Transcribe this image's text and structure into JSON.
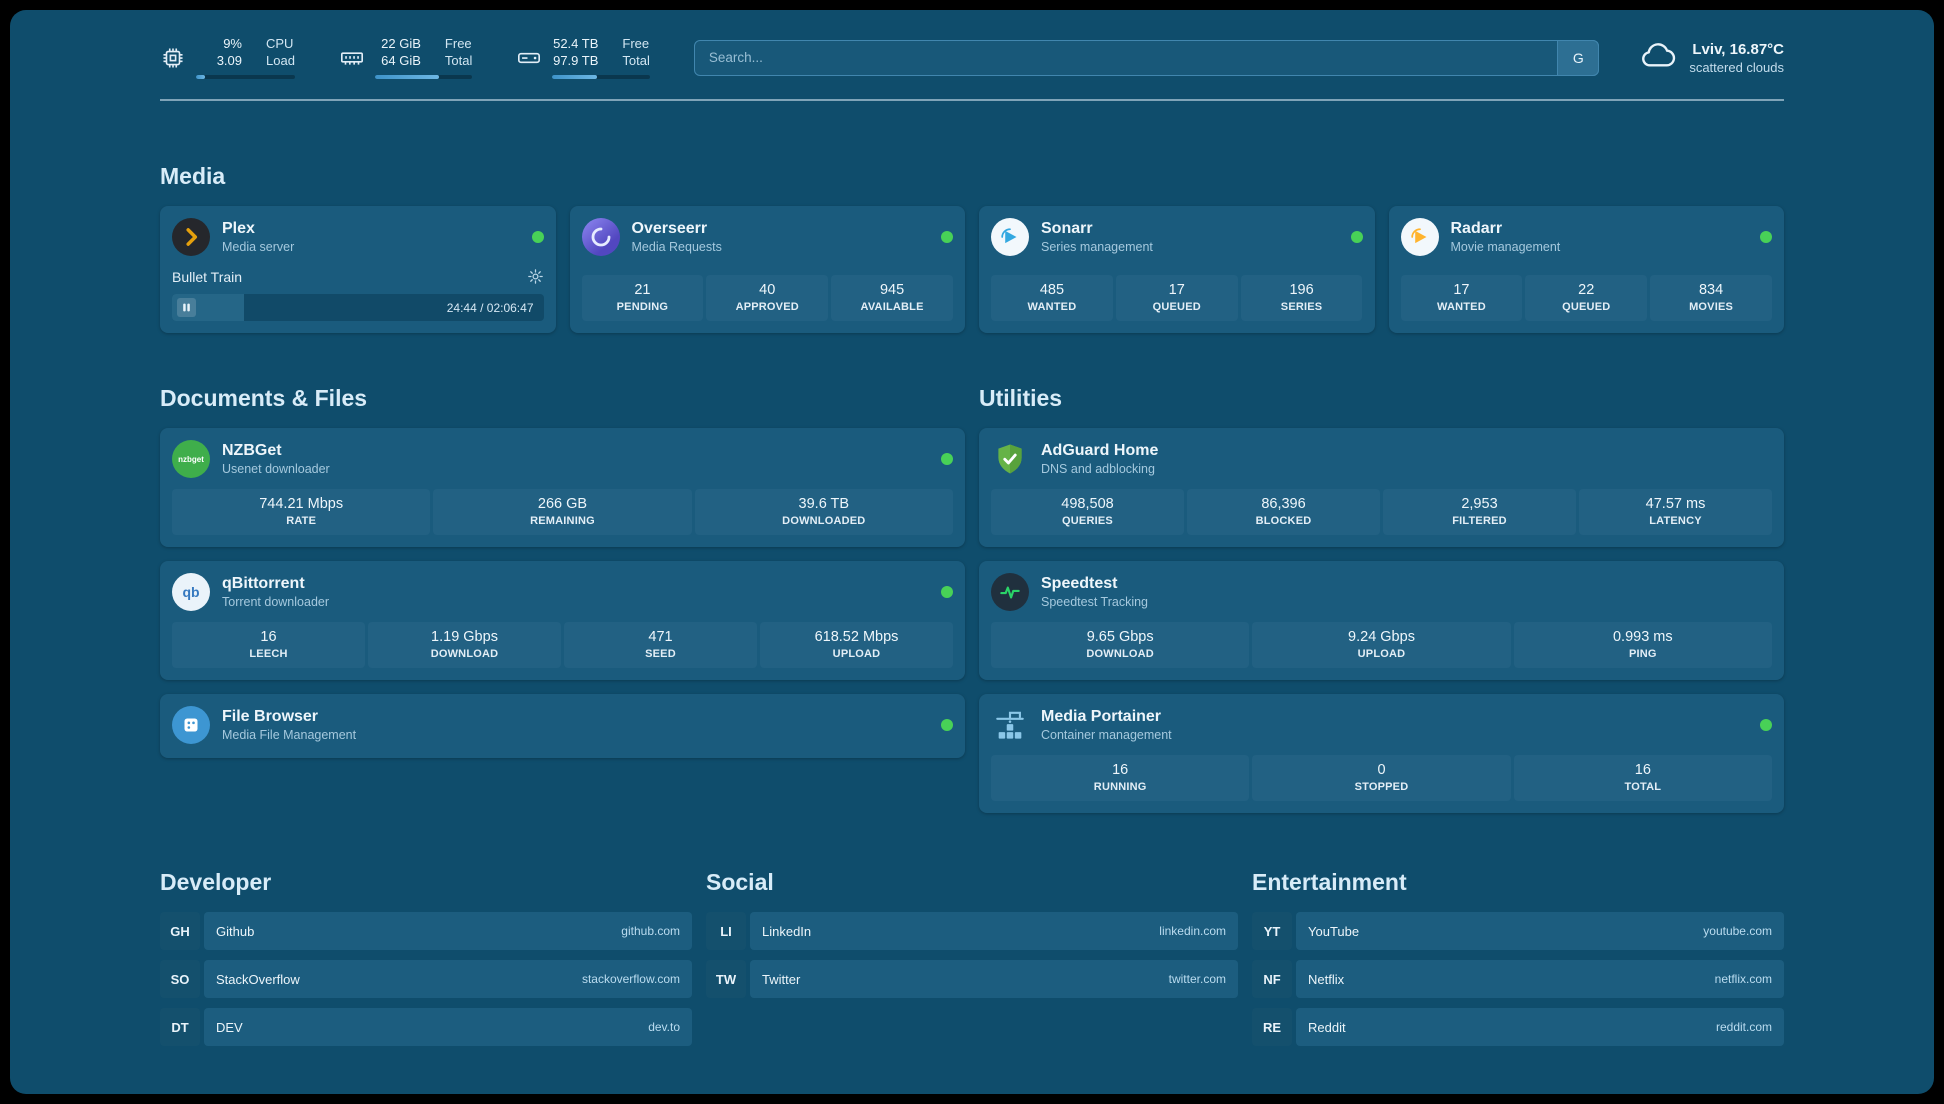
{
  "colors": {
    "background": "#0f4d6c",
    "card": "#1a5b7d",
    "stat_tile": "#226183",
    "status_online": "#48d157",
    "plex_accent": "#e5a00d",
    "search_border": "#4186ae"
  },
  "topbar": {
    "system_widgets": [
      {
        "icon": "cpu-icon",
        "value_top": "9%",
        "value_bottom": "3.09",
        "label_top": "CPU",
        "label_bottom": "Load",
        "progress": 9
      },
      {
        "icon": "ram-icon",
        "value_top": "22 GiB",
        "value_bottom": "64 GiB",
        "label_top": "Free",
        "label_bottom": "Total",
        "progress": 66
      },
      {
        "icon": "disk-icon",
        "value_top": "52.4 TB",
        "value_bottom": "97.9 TB",
        "label_top": "Free",
        "label_bottom": "Total",
        "progress": 46
      }
    ],
    "search": {
      "placeholder": "Search...",
      "button_label": "G"
    },
    "weather": {
      "icon": "cloud-icon",
      "location": "Lviv, 16.87°C",
      "condition": "scattered clouds"
    }
  },
  "sections": {
    "media": {
      "title": "Media",
      "cards": [
        {
          "name": "Plex",
          "desc": "Media server",
          "online": true,
          "now_playing": {
            "title": "Bullet Train",
            "time": "24:44 / 02:06:47",
            "progress_pct": 19.5
          }
        },
        {
          "name": "Overseerr",
          "desc": "Media Requests",
          "online": true,
          "stats": [
            {
              "value": "21",
              "label": "PENDING"
            },
            {
              "value": "40",
              "label": "APPROVED"
            },
            {
              "value": "945",
              "label": "AVAILABLE"
            }
          ]
        },
        {
          "name": "Sonarr",
          "desc": "Series management",
          "online": true,
          "stats": [
            {
              "value": "485",
              "label": "WANTED"
            },
            {
              "value": "17",
              "label": "QUEUED"
            },
            {
              "value": "196",
              "label": "SERIES"
            }
          ]
        },
        {
          "name": "Radarr",
          "desc": "Movie management",
          "online": true,
          "stats": [
            {
              "value": "17",
              "label": "WANTED"
            },
            {
              "value": "22",
              "label": "QUEUED"
            },
            {
              "value": "834",
              "label": "MOVIES"
            }
          ]
        }
      ]
    },
    "documents": {
      "title": "Documents & Files",
      "cards": [
        {
          "name": "NZBGet",
          "desc": "Usenet downloader",
          "online": true,
          "icon_text": "nzbget",
          "stats": [
            {
              "value": "744.21 Mbps",
              "label": "RATE"
            },
            {
              "value": "266 GB",
              "label": "REMAINING"
            },
            {
              "value": "39.6 TB",
              "label": "DOWNLOADED"
            }
          ]
        },
        {
          "name": "qBittorrent",
          "desc": "Torrent downloader",
          "online": true,
          "icon_text": "qb",
          "stats": [
            {
              "value": "16",
              "label": "LEECH"
            },
            {
              "value": "1.19 Gbps",
              "label": "DOWNLOAD"
            },
            {
              "value": "471",
              "label": "SEED"
            },
            {
              "value": "618.52 Mbps",
              "label": "UPLOAD"
            }
          ]
        },
        {
          "name": "File Browser",
          "desc": "Media File Management",
          "online": true
        }
      ]
    },
    "utilities": {
      "title": "Utilities",
      "cards": [
        {
          "name": "AdGuard Home",
          "desc": "DNS and adblocking",
          "stats": [
            {
              "value": "498,508",
              "label": "QUERIES"
            },
            {
              "value": "86,396",
              "label": "BLOCKED"
            },
            {
              "value": "2,953",
              "label": "FILTERED"
            },
            {
              "value": "47.57 ms",
              "label": "LATENCY"
            }
          ]
        },
        {
          "name": "Speedtest",
          "desc": "Speedtest Tracking",
          "stats": [
            {
              "value": "9.65 Gbps",
              "label": "DOWNLOAD"
            },
            {
              "value": "9.24 Gbps",
              "label": "UPLOAD"
            },
            {
              "value": "0.993 ms",
              "label": "PING"
            }
          ]
        },
        {
          "name": "Media Portainer",
          "desc": "Container management",
          "online": true,
          "stats": [
            {
              "value": "16",
              "label": "RUNNING"
            },
            {
              "value": "0",
              "label": "STOPPED"
            },
            {
              "value": "16",
              "label": "TOTAL"
            }
          ]
        }
      ]
    },
    "bookmarks": [
      {
        "title": "Developer",
        "items": [
          {
            "abbr": "GH",
            "name": "Github",
            "url": "github.com"
          },
          {
            "abbr": "SO",
            "name": "StackOverflow",
            "url": "stackoverflow.com"
          },
          {
            "abbr": "DT",
            "name": "DEV",
            "url": "dev.to"
          }
        ]
      },
      {
        "title": "Social",
        "items": [
          {
            "abbr": "LI",
            "name": "LinkedIn",
            "url": "linkedin.com"
          },
          {
            "abbr": "TW",
            "name": "Twitter",
            "url": "twitter.com"
          }
        ]
      },
      {
        "title": "Entertainment",
        "items": [
          {
            "abbr": "YT",
            "name": "YouTube",
            "url": "youtube.com"
          },
          {
            "abbr": "NF",
            "name": "Netflix",
            "url": "netflix.com"
          },
          {
            "abbr": "RE",
            "name": "Reddit",
            "url": "reddit.com"
          }
        ]
      }
    ]
  }
}
